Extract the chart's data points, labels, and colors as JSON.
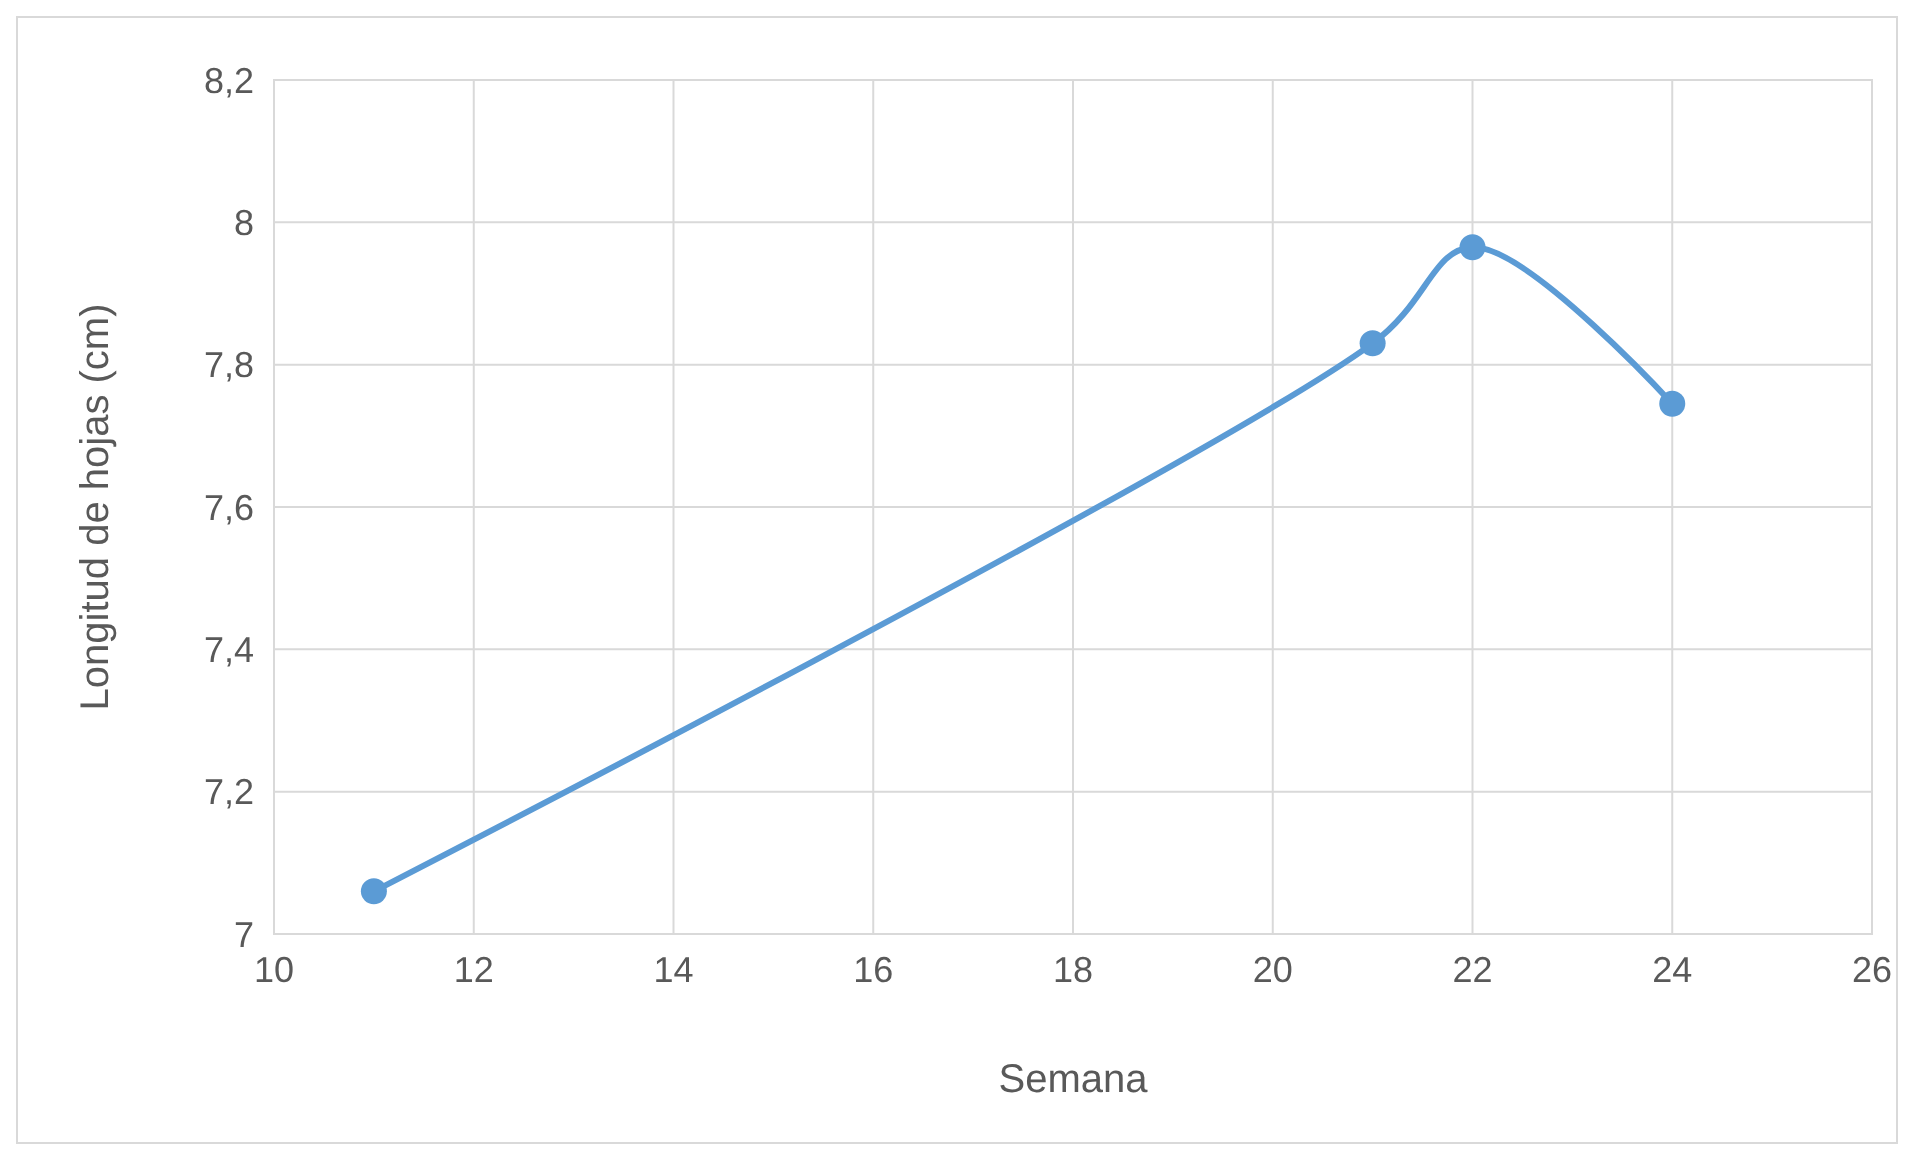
{
  "chart_data": {
    "type": "line",
    "xlabel": "Semana",
    "ylabel": "Longitud de hojas (cm)",
    "x": [
      11,
      21,
      22,
      24
    ],
    "series": [
      {
        "color": "#5b9bd5",
        "values": [
          7.06,
          7.83,
          7.965,
          7.745
        ]
      }
    ],
    "xlim": [
      10,
      26
    ],
    "xticks": [
      10,
      12,
      14,
      16,
      18,
      20,
      22,
      24,
      26
    ],
    "ylim": [
      7,
      8.2
    ],
    "yticks": [
      {
        "value": 7,
        "label": "7"
      },
      {
        "value": 7.2,
        "label": "7,2"
      },
      {
        "value": 7.4,
        "label": "7,4"
      },
      {
        "value": 7.6,
        "label": "7,6"
      },
      {
        "value": 7.8,
        "label": "7,8"
      },
      {
        "value": 8,
        "label": "8"
      },
      {
        "value": 8.2,
        "label": "8,2"
      }
    ],
    "grid": true,
    "marker": "circle",
    "line_style": "solid"
  }
}
